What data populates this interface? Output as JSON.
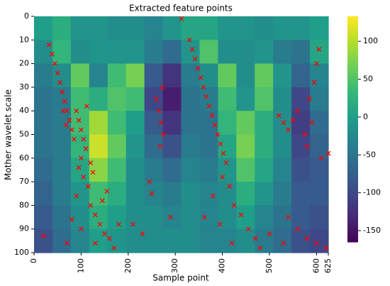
{
  "chart_data": {
    "type": "heatmap",
    "title": "Extracted feature points",
    "x_label": "Sample point",
    "y_label": "Mother wavelet scale",
    "xlim": [
      0,
      625
    ],
    "xticks": [
      0,
      100,
      200,
      300,
      400,
      500,
      600,
      625
    ],
    "ylim": [
      0,
      100
    ],
    "invert_y": true,
    "yticks": [
      0,
      10,
      20,
      30,
      40,
      50,
      60,
      70,
      80,
      90,
      100
    ],
    "colormap": "viridis",
    "zlim": [
      -165,
      133
    ],
    "zticks": [
      -150,
      -100,
      -50,
      0,
      50,
      100
    ],
    "z": [
      [
        0,
        20,
        -10,
        -10,
        -20,
        -20,
        -30,
        -10,
        10,
        10,
        -10,
        -10,
        -20,
        -10,
        -10,
        0
      ],
      [
        -20,
        30,
        -20,
        -10,
        -10,
        -10,
        -40,
        -60,
        -10,
        50,
        -20,
        -20,
        -10,
        -40,
        -50,
        10
      ],
      [
        -40,
        -20,
        60,
        -30,
        40,
        70,
        -80,
        -120,
        -40,
        -20,
        60,
        -20,
        60,
        -10,
        -70,
        -30
      ],
      [
        -50,
        -40,
        40,
        20,
        50,
        40,
        -100,
        -140,
        -50,
        -40,
        40,
        -10,
        50,
        -20,
        -100,
        -40
      ],
      [
        -50,
        -40,
        40,
        90,
        40,
        0,
        -80,
        -120,
        -50,
        -50,
        30,
        60,
        20,
        -20,
        -110,
        -60
      ],
      [
        -50,
        -40,
        30,
        110,
        60,
        -10,
        -60,
        -90,
        -40,
        -50,
        10,
        70,
        20,
        -20,
        -100,
        -70
      ],
      [
        -60,
        -40,
        10,
        80,
        40,
        -20,
        -40,
        -60,
        -30,
        -40,
        -10,
        50,
        10,
        -30,
        -90,
        -80
      ],
      [
        -70,
        -40,
        -10,
        40,
        20,
        -20,
        -30,
        -40,
        -20,
        -30,
        -20,
        20,
        -10,
        -40,
        -80,
        -80
      ],
      [
        -80,
        -50,
        -20,
        20,
        0,
        -20,
        -20,
        -30,
        -20,
        -30,
        -20,
        0,
        -30,
        -50,
        -80,
        -90
      ],
      [
        -90,
        -60,
        -30,
        0,
        -10,
        -20,
        -20,
        -20,
        -20,
        -30,
        -30,
        -20,
        -40,
        -60,
        -90,
        -100
      ]
    ],
    "points": {
      "color": "#ff0000",
      "x": [
        32,
        38,
        44,
        50,
        55,
        60,
        65,
        70,
        75,
        80,
        85,
        62,
        68,
        90,
        95,
        100,
        105,
        110,
        100,
        95,
        105,
        115,
        90,
        120,
        130,
        80,
        140,
        100,
        150,
        160,
        70,
        170,
        130,
        145,
        155,
        120,
        112,
        125,
        180,
        20,
        260,
        265,
        270,
        275,
        268,
        272,
        245,
        250,
        230,
        210,
        290,
        313,
        330,
        336,
        342,
        348,
        354,
        360,
        366,
        372,
        378,
        384,
        390,
        396,
        402,
        408,
        400,
        415,
        380,
        425,
        440,
        395,
        455,
        470,
        420,
        480,
        500,
        362,
        520,
        530,
        540,
        550,
        560,
        575,
        580,
        590,
        585,
        595,
        600,
        605,
        610,
        540,
        560,
        580,
        600,
        620,
        530,
        625
      ],
      "y": [
        12,
        16,
        20,
        24,
        28,
        32,
        36,
        40,
        44,
        48,
        52,
        40,
        46,
        40,
        44,
        48,
        52,
        56,
        60,
        64,
        68,
        72,
        76,
        80,
        84,
        86,
        88,
        90,
        92,
        94,
        96,
        98,
        96,
        78,
        74,
        62,
        38,
        66,
        88,
        93,
        35,
        40,
        45,
        50,
        55,
        30,
        70,
        75,
        92,
        88,
        85,
        1,
        10,
        14,
        18,
        22,
        26,
        30,
        34,
        38,
        42,
        46,
        50,
        54,
        58,
        62,
        68,
        72,
        76,
        80,
        84,
        88,
        90,
        94,
        96,
        98,
        92,
        85,
        42,
        45,
        48,
        44,
        40,
        50,
        55,
        45,
        35,
        28,
        20,
        14,
        60,
        85,
        90,
        94,
        96,
        98,
        96,
        58
      ]
    }
  }
}
